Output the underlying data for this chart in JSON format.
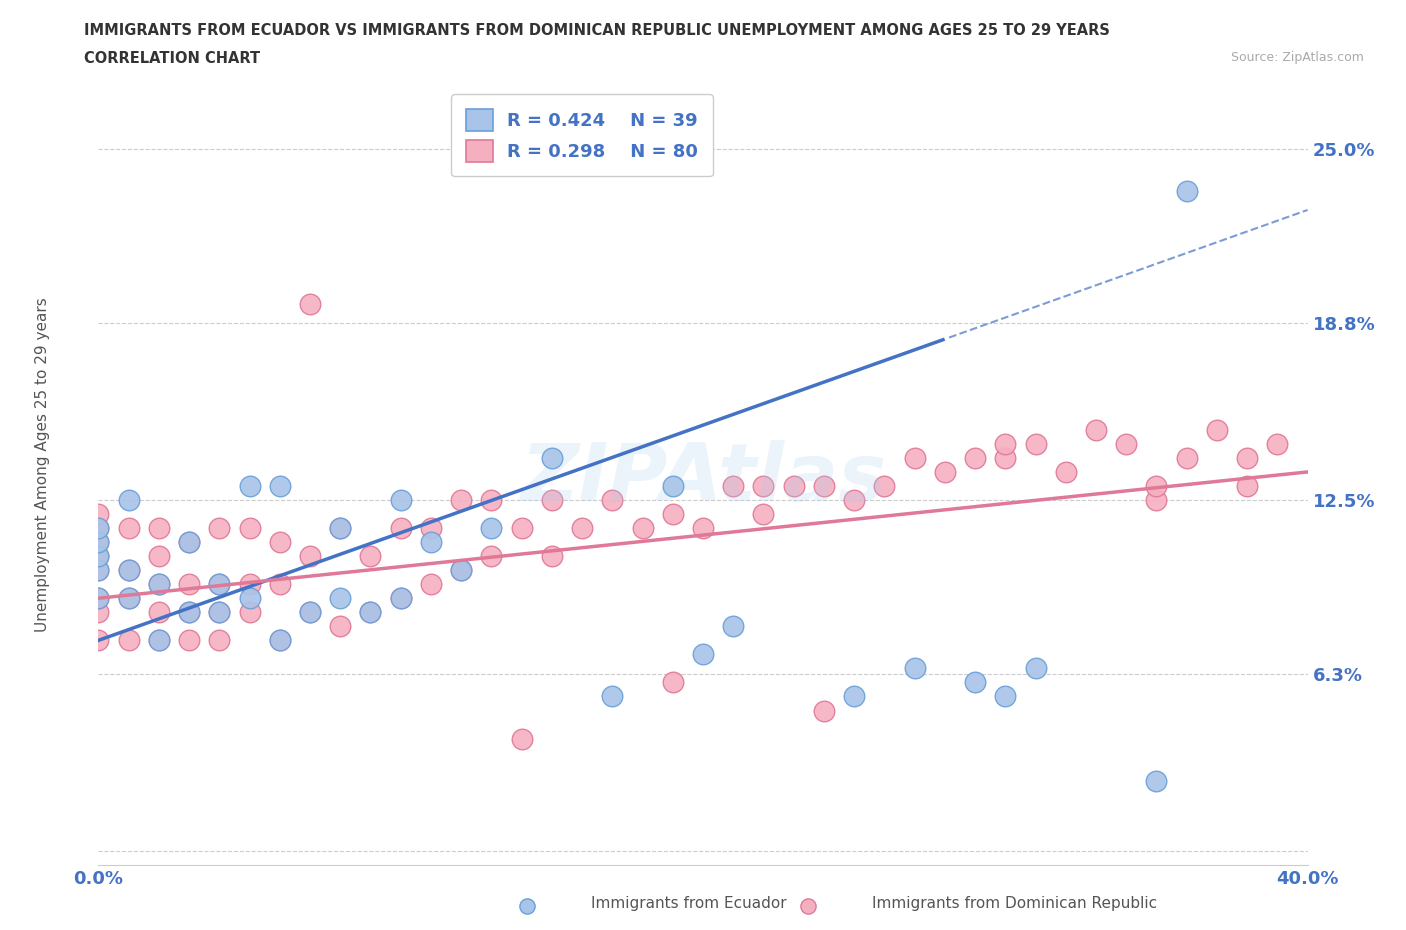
{
  "title_line1": "IMMIGRANTS FROM ECUADOR VS IMMIGRANTS FROM DOMINICAN REPUBLIC UNEMPLOYMENT AMONG AGES 25 TO 29 YEARS",
  "title_line2": "CORRELATION CHART",
  "source": "Source: ZipAtlas.com",
  "ylabel": "Unemployment Among Ages 25 to 29 years",
  "xlim": [
    0.0,
    0.4
  ],
  "ylim": [
    -0.005,
    0.27
  ],
  "yticks": [
    0.0,
    0.063,
    0.125,
    0.188,
    0.25
  ],
  "ytick_labels": [
    "",
    "6.3%",
    "12.5%",
    "18.8%",
    "25.0%"
  ],
  "xticks": [
    0.0,
    0.1,
    0.2,
    0.3,
    0.4
  ],
  "xtick_labels": [
    "0.0%",
    "",
    "",
    "",
    "40.0%"
  ],
  "watermark": "ZIPAtlas",
  "ecuador_color": "#a8c4e8",
  "ecuador_edge": "#6a9fd8",
  "domrep_color": "#f5b0c0",
  "domrep_edge": "#e07898",
  "ecuador_R": 0.424,
  "ecuador_N": 39,
  "domrep_R": 0.298,
  "domrep_N": 80,
  "ecuador_x": [
    0.0,
    0.0,
    0.0,
    0.0,
    0.0,
    0.01,
    0.01,
    0.01,
    0.02,
    0.02,
    0.03,
    0.03,
    0.04,
    0.04,
    0.05,
    0.05,
    0.06,
    0.06,
    0.07,
    0.08,
    0.08,
    0.09,
    0.1,
    0.1,
    0.11,
    0.12,
    0.13,
    0.15,
    0.17,
    0.19,
    0.2,
    0.21,
    0.25,
    0.27,
    0.29,
    0.3,
    0.31,
    0.35,
    0.36
  ],
  "ecuador_y": [
    0.09,
    0.1,
    0.105,
    0.11,
    0.115,
    0.09,
    0.1,
    0.125,
    0.075,
    0.095,
    0.085,
    0.11,
    0.085,
    0.095,
    0.09,
    0.13,
    0.075,
    0.13,
    0.085,
    0.09,
    0.115,
    0.085,
    0.09,
    0.125,
    0.11,
    0.1,
    0.115,
    0.14,
    0.055,
    0.13,
    0.07,
    0.08,
    0.055,
    0.065,
    0.06,
    0.055,
    0.065,
    0.025,
    0.235
  ],
  "domrep_x": [
    0.0,
    0.0,
    0.0,
    0.0,
    0.0,
    0.0,
    0.0,
    0.0,
    0.01,
    0.01,
    0.01,
    0.01,
    0.02,
    0.02,
    0.02,
    0.02,
    0.02,
    0.03,
    0.03,
    0.03,
    0.03,
    0.04,
    0.04,
    0.04,
    0.04,
    0.05,
    0.05,
    0.05,
    0.06,
    0.06,
    0.06,
    0.07,
    0.07,
    0.08,
    0.08,
    0.09,
    0.09,
    0.1,
    0.1,
    0.11,
    0.11,
    0.12,
    0.12,
    0.13,
    0.13,
    0.14,
    0.15,
    0.15,
    0.16,
    0.17,
    0.18,
    0.19,
    0.2,
    0.21,
    0.22,
    0.22,
    0.23,
    0.24,
    0.25,
    0.26,
    0.27,
    0.28,
    0.29,
    0.3,
    0.3,
    0.31,
    0.32,
    0.33,
    0.34,
    0.35,
    0.35,
    0.36,
    0.37,
    0.38,
    0.38,
    0.39,
    0.24,
    0.19,
    0.07,
    0.14
  ],
  "domrep_y": [
    0.075,
    0.085,
    0.09,
    0.1,
    0.105,
    0.11,
    0.115,
    0.12,
    0.075,
    0.09,
    0.1,
    0.115,
    0.075,
    0.085,
    0.095,
    0.105,
    0.115,
    0.075,
    0.085,
    0.095,
    0.11,
    0.075,
    0.085,
    0.095,
    0.115,
    0.085,
    0.095,
    0.115,
    0.075,
    0.095,
    0.11,
    0.085,
    0.105,
    0.08,
    0.115,
    0.085,
    0.105,
    0.09,
    0.115,
    0.095,
    0.115,
    0.1,
    0.125,
    0.105,
    0.125,
    0.115,
    0.105,
    0.125,
    0.115,
    0.125,
    0.115,
    0.12,
    0.115,
    0.13,
    0.12,
    0.13,
    0.13,
    0.13,
    0.125,
    0.13,
    0.14,
    0.135,
    0.14,
    0.14,
    0.145,
    0.145,
    0.135,
    0.15,
    0.145,
    0.125,
    0.13,
    0.14,
    0.15,
    0.13,
    0.14,
    0.145,
    0.05,
    0.06,
    0.195,
    0.04
  ],
  "background_color": "#ffffff",
  "grid_color": "#cccccc",
  "axis_label_color": "#555555",
  "tick_label_color": "#4472c4",
  "legend_R_color": "#4472c4",
  "trendline_ecuador_color": "#4472c4",
  "trendline_domrep_color": "#e07898"
}
